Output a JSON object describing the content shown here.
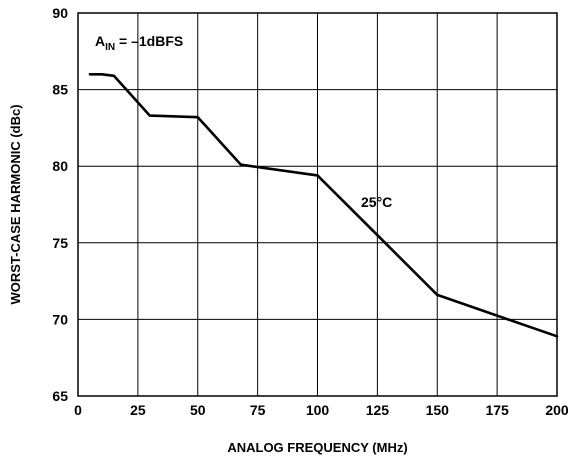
{
  "chart_data": {
    "type": "line",
    "title": "",
    "xlabel": "ANALOG FREQUENCY (MHz)",
    "ylabel": "WORST-CASE HARMONIC (dBc)",
    "xlim": [
      0,
      200
    ],
    "ylim": [
      65,
      90
    ],
    "x_ticks": [
      0,
      25,
      50,
      75,
      100,
      125,
      150,
      175,
      200
    ],
    "y_ticks": [
      65,
      70,
      75,
      80,
      85,
      90
    ],
    "x_tick_labels": [
      "0",
      "25",
      "50",
      "75",
      "100",
      "125",
      "150",
      "175",
      "200"
    ],
    "y_tick_labels": [
      "65",
      "70",
      "75",
      "80",
      "85",
      "90"
    ],
    "grid": true,
    "legend": "none",
    "series": [
      {
        "x": [
          5,
          10,
          15,
          30,
          50,
          68,
          100,
          150,
          200
        ],
        "y": [
          86.0,
          86.0,
          85.9,
          83.3,
          83.2,
          80.1,
          79.4,
          71.6,
          68.9
        ],
        "color": "#000000"
      }
    ],
    "annotations": [
      {
        "text_main": "A",
        "text_sub": "IN",
        "text_rest": " = –1dBFS"
      },
      {
        "text": "25°C"
      }
    ]
  }
}
